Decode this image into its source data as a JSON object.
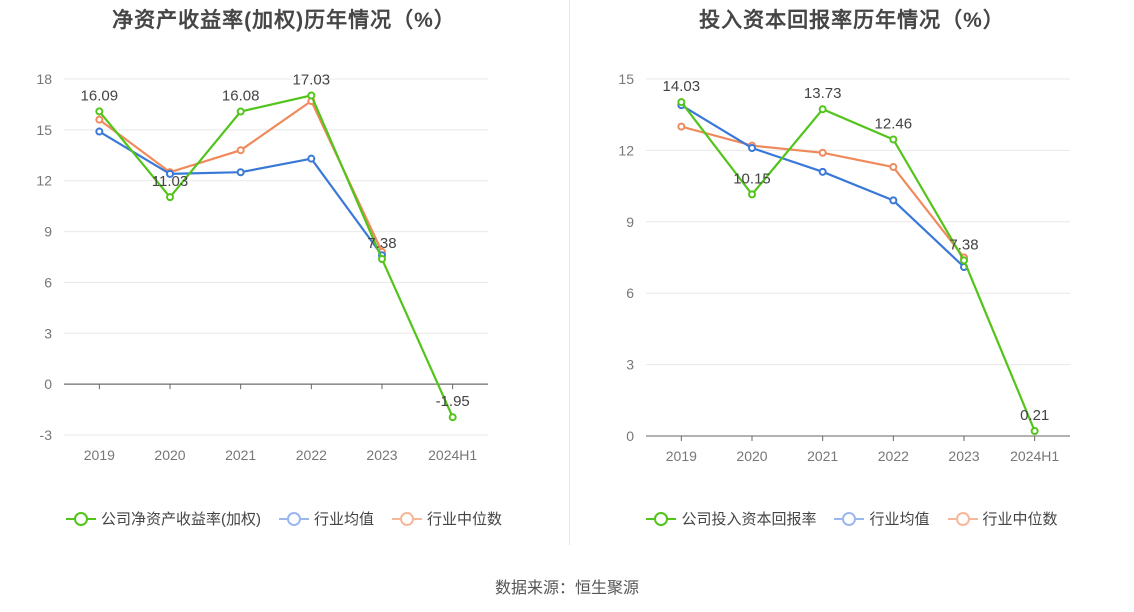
{
  "source": "数据来源：恒生聚源",
  "chart_data": [
    {
      "type": "line",
      "title": "净资产收益率(加权)历年情况（%）",
      "categories": [
        "2019",
        "2020",
        "2021",
        "2022",
        "2023",
        "2024H1"
      ],
      "yticks": [
        "-3",
        "0",
        "3",
        "6",
        "9",
        "12",
        "15",
        "18"
      ],
      "ylim": [
        -3,
        18
      ],
      "grid": true,
      "legend_position": "bottom",
      "series": [
        {
          "name": "公司净资产收益率(加权)",
          "color": "#52c41a",
          "values": [
            16.09,
            11.03,
            16.08,
            17.03,
            7.38,
            -1.95
          ],
          "labels": [
            "16.09",
            "11.03",
            "16.08",
            "17.03",
            "7.38",
            "-1.95"
          ]
        },
        {
          "name": "行业均值",
          "color": "#3a78d8",
          "values": [
            14.9,
            12.4,
            12.5,
            13.3,
            7.6,
            null
          ]
        },
        {
          "name": "行业中位数",
          "color": "#f08a5d",
          "values": [
            15.6,
            12.5,
            13.8,
            16.7,
            7.8,
            null
          ]
        }
      ]
    },
    {
      "type": "line",
      "title": "投入资本回报率历年情况（%）",
      "categories": [
        "2019",
        "2020",
        "2021",
        "2022",
        "2023",
        "2024H1"
      ],
      "yticks": [
        "0",
        "3",
        "6",
        "9",
        "12",
        "15"
      ],
      "ylim": [
        0,
        15
      ],
      "grid": true,
      "legend_position": "bottom",
      "series": [
        {
          "name": "公司投入资本回报率",
          "color": "#52c41a",
          "values": [
            14.03,
            10.15,
            13.73,
            12.46,
            7.38,
            0.21
          ],
          "labels": [
            "14.03",
            "10.15",
            "13.73",
            "12.46",
            "7.38",
            "0.21"
          ]
        },
        {
          "name": "行业均值",
          "color": "#3a78d8",
          "values": [
            13.9,
            12.1,
            11.1,
            9.9,
            7.1,
            null
          ]
        },
        {
          "name": "行业中位数",
          "color": "#f08a5d",
          "values": [
            13.0,
            12.2,
            11.9,
            11.3,
            7.5,
            null
          ]
        }
      ]
    }
  ]
}
